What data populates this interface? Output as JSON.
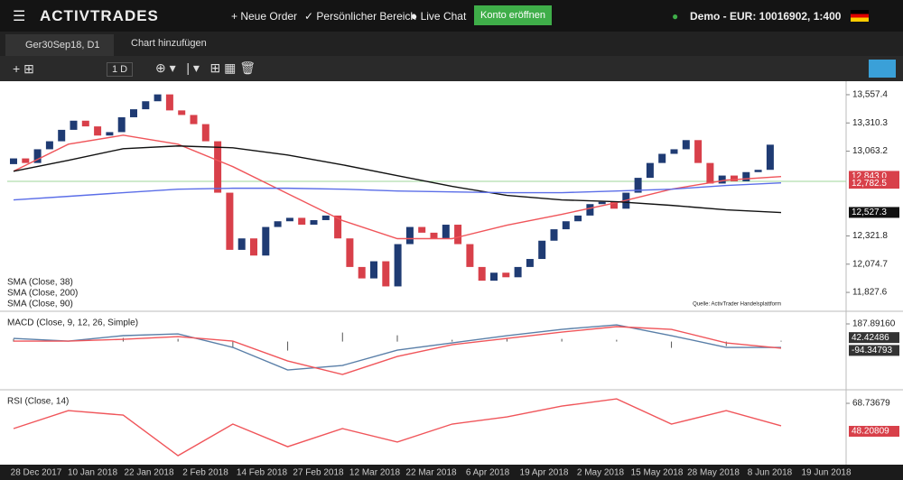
{
  "header": {
    "logo": "ACTIVTRADES",
    "menu": [
      "Neue Order",
      "Persönlicher Bereich",
      "Live Chat"
    ],
    "open_account": "Konto eröffnen",
    "account": "Demo - EUR: 10016902, 1:400"
  },
  "tabs": [
    "Ger30Sep18, D1",
    "Chart hinzufügen"
  ],
  "toolbar": {
    "interval": "1 D"
  },
  "chart_data": [
    {
      "type": "candlestick",
      "source": "Quelle: ActivTrader Handelsplattform",
      "up_color": "#1f3b73",
      "down_color": "#d8404a",
      "open": [
        12950,
        13000,
        12960,
        13080,
        13150,
        13250,
        13330,
        13280,
        13200,
        13230,
        13360,
        13430,
        13500,
        13560,
        13420,
        13380,
        13300,
        13150,
        12700,
        12200,
        12300,
        12150,
        12400,
        12450,
        12480,
        12420,
        12460,
        12500,
        12300,
        12050,
        11950,
        12100,
        11880,
        12250,
        12400,
        12350,
        12300,
        12420,
        12250,
        12050,
        11930,
        12000,
        11960,
        12050,
        12120,
        12280,
        12380,
        12450,
        12500,
        12600,
        12620,
        12560,
        12700,
        12830,
        12960,
        13040,
        13080,
        13160,
        12960,
        12780,
        12850,
        12800,
        12880,
        12900
      ],
      "close": [
        13000,
        12960,
        13080,
        13150,
        13250,
        13330,
        13280,
        13200,
        13230,
        13360,
        13430,
        13500,
        13560,
        13420,
        13380,
        13300,
        13150,
        12700,
        12200,
        12300,
        12150,
        12400,
        12450,
        12480,
        12420,
        12460,
        12500,
        12300,
        12050,
        11950,
        12100,
        11880,
        12250,
        12400,
        12350,
        12300,
        12420,
        12250,
        12050,
        11930,
        12000,
        11960,
        12050,
        12120,
        12280,
        12380,
        12450,
        12500,
        12600,
        12620,
        12560,
        12700,
        12830,
        12960,
        13040,
        13080,
        13160,
        12960,
        12780,
        12850,
        12800,
        12880,
        12900,
        13120
      ],
      "series": [
        {
          "name": "SMA (Close, 38)",
          "color": "#f0555a",
          "values": [
            12888,
            13124,
            13203,
            13124,
            12928,
            12692,
            12456,
            12298,
            12298,
            12416,
            12511,
            12613,
            12731,
            12810,
            12841
          ]
        },
        {
          "name": "SMA (Close, 200)",
          "color": "#111111",
          "values": [
            12888,
            12983,
            13085,
            13109,
            13093,
            13030,
            12944,
            12849,
            12755,
            12676,
            12637,
            12621,
            12589,
            12550,
            12526
          ]
        },
        {
          "name": "SMA (Close, 90)",
          "color": "#5b6ee8",
          "values": [
            12637,
            12668,
            12700,
            12731,
            12739,
            12739,
            12731,
            12715,
            12707,
            12700,
            12700,
            12715,
            12731,
            12763,
            12786
          ]
        }
      ],
      "ylim": [
        11662.4,
        13659.7
      ],
      "yticks": [
        {
          "value": 13557.4,
          "label": "13,557.4"
        },
        {
          "value": 13310.3,
          "label": "13,310.3"
        },
        {
          "value": 13063.2,
          "label": "13,063.2"
        },
        {
          "value": 12321.8,
          "label": "12,321.8"
        },
        {
          "value": 12074.7,
          "label": "12,074.7"
        },
        {
          "value": 11827.6,
          "label": "11,827.6"
        }
      ],
      "price_labels": [
        {
          "value": 12843.0,
          "label": "12,843.0",
          "color": "#d8404a"
        },
        {
          "value": 12782.5,
          "label": "12,782.5",
          "color": "#d8404a"
        },
        {
          "value": 12527.3,
          "label": "12,527.3",
          "color": "#111111"
        }
      ]
    },
    {
      "type": "line",
      "title": "MACD (Close, 9, 12, 26, Simple)",
      "histogram": [
        29,
        0,
        39,
        29,
        -67,
        -96,
        96,
        67,
        19,
        29,
        29,
        19,
        -67,
        -48,
        9
      ],
      "series": [
        {
          "name": "MACD",
          "color": "#5a7fa8",
          "values": [
            34,
            5,
            63,
            82,
            -62,
            -302,
            -254,
            -91,
            -14,
            63,
            130,
            178,
            63,
            -62,
            -62
          ]
        },
        {
          "name": "Signal",
          "color": "#f0555a",
          "values": [
            5,
            5,
            24,
            53,
            5,
            -206,
            -350,
            -158,
            -33,
            34,
            101,
            159,
            130,
            -14,
            -71
          ]
        }
      ],
      "ylim": [
        -513,
        293.5
      ],
      "yticks": [
        {
          "value": 187.8916,
          "label": "187.89160"
        }
      ],
      "price_labels": [
        {
          "value": 42.42486,
          "label": "42.42486",
          "color": "#333333"
        },
        {
          "value": -94.34793,
          "label": "-94.34793",
          "color": "#333333"
        }
      ]
    },
    {
      "type": "line",
      "title": "RSI (Close, 14)",
      "series": [
        {
          "name": "RSI",
          "color": "#f0555a",
          "values": [
            50.2,
            63.4,
            60.1,
            30.3,
            53.5,
            36.9,
            50.2,
            40.3,
            53.5,
            58.8,
            66.7,
            72.0,
            53.5,
            63.4,
            52.2
          ]
        }
      ],
      "ylim": [
        23.7,
        76.7
      ],
      "yticks": [
        68.73679
      ],
      "price_labels": [
        {
          "value": 48.20809,
          "label": "48.20809",
          "color": "#d8404a"
        }
      ],
      "x_labels": [
        "28 Dec 2017",
        "10 Jan 2018",
        "22 Jan 2018",
        "2 Feb 2018",
        "14 Feb 2018",
        "27 Feb 2018",
        "12 Mar 2018",
        "22 Mar 2018",
        "6 Apr 2018",
        "19 Apr 2018",
        "2 May 2018",
        "15 May 2018",
        "28 May 2018",
        "8 Jun 2018",
        "19 Jun 2018"
      ]
    }
  ]
}
